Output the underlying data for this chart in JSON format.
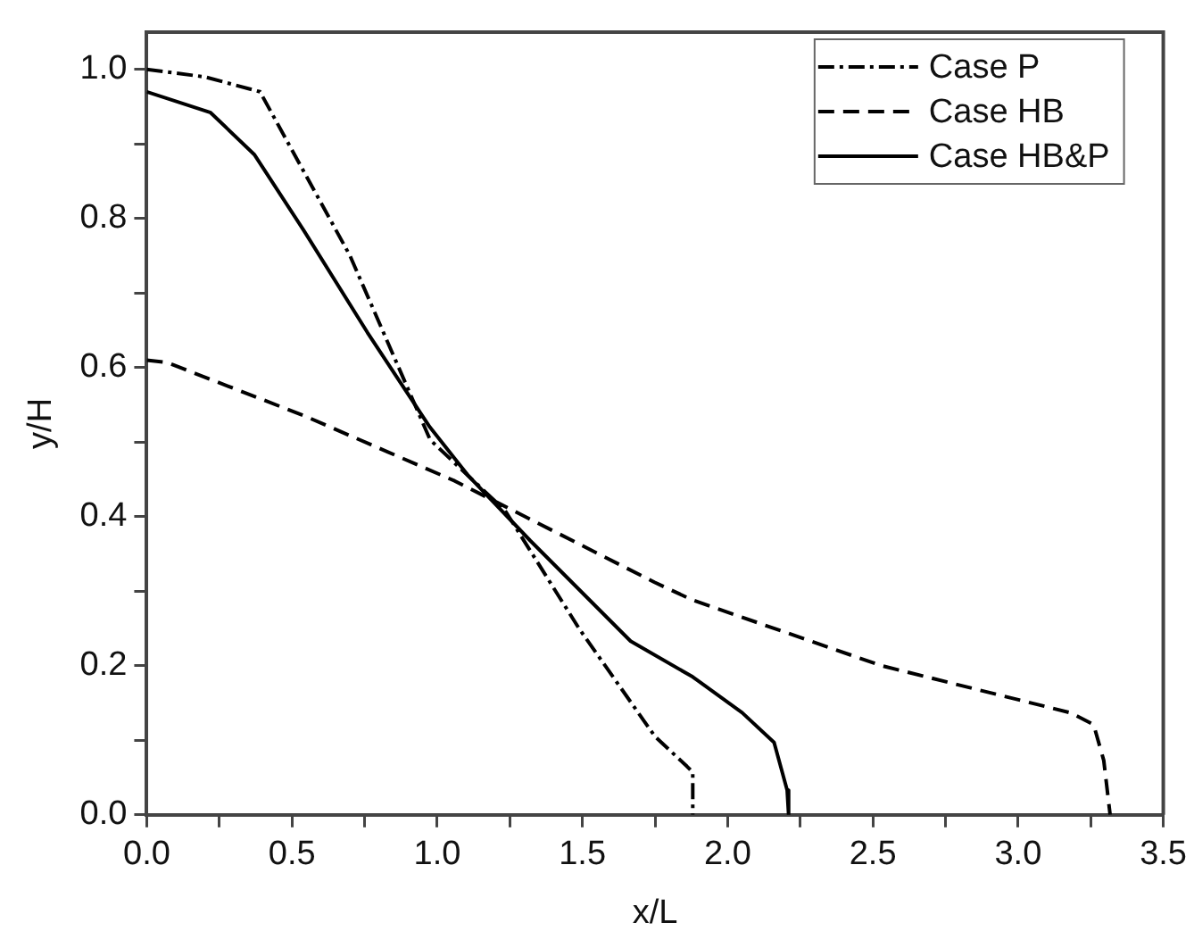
{
  "chart_data": {
    "type": "line",
    "xlabel": "x/L",
    "ylabel": "y/H",
    "xlim": [
      0,
      3.5
    ],
    "ylim": [
      0,
      1.05
    ],
    "xticks": [
      {
        "value": 0,
        "label": "0.0"
      },
      {
        "value": 0.25,
        "label": null
      },
      0.5,
      {
        "value": 0.75,
        "label": null
      },
      {
        "value": 1,
        "label": "1.0"
      },
      {
        "value": 1.25,
        "label": null
      },
      1.5,
      {
        "value": 1.75,
        "label": null
      },
      {
        "value": 2,
        "label": "2.0"
      },
      {
        "value": 2.25,
        "label": null
      },
      2.5,
      {
        "value": 2.75,
        "label": null
      },
      {
        "value": 3,
        "label": "3.0"
      },
      {
        "value": 3.25,
        "label": null
      },
      3.5
    ],
    "yticks": [
      {
        "value": 0,
        "label": "0.0"
      },
      {
        "value": 0.1,
        "label": null
      },
      0.2,
      {
        "value": 0.3,
        "label": null
      },
      0.4,
      {
        "value": 0.5,
        "label": null
      },
      0.6,
      {
        "value": 0.7,
        "label": null
      },
      0.8,
      {
        "value": 0.9,
        "label": null
      },
      {
        "value": 1,
        "label": "1.0"
      }
    ],
    "grid": false,
    "legend": "top right",
    "marker": "none",
    "series": [
      {
        "name": "Case P",
        "color": "#000000",
        "line_style": "dashdot",
        "x": [
          0,
          0.2,
          0.39,
          0.7,
          0.976,
          1.234,
          1.49,
          1.75,
          1.86,
          1.88,
          1.88
        ],
        "values": [
          1.0,
          0.99,
          0.97,
          0.75,
          0.503,
          0.408,
          0.249,
          0.105,
          0.065,
          0.057,
          0
        ]
      },
      {
        "name": "Case HB",
        "color": "#000000",
        "line_style": "dashed",
        "x": [
          0,
          0.069,
          0.544,
          1.06,
          1.748,
          1.88,
          2.53,
          3.18,
          3.26,
          3.295,
          3.317
        ],
        "values": [
          0.61,
          0.607,
          0.535,
          0.448,
          0.312,
          0.288,
          0.2,
          0.137,
          0.121,
          0.073,
          0
        ]
      },
      {
        "name": "Case HB&P",
        "color": "#000000",
        "line_style": "solid",
        "x": [
          0,
          0.22,
          0.37,
          0.544,
          0.76,
          0.975,
          1.105,
          1.32,
          1.666,
          1.88,
          2.05,
          2.16,
          2.205,
          2.21
        ],
        "values": [
          0.97,
          0.942,
          0.886,
          0.782,
          0.647,
          0.52,
          0.456,
          0.368,
          0.233,
          0.185,
          0.137,
          0.097,
          0.033,
          0
        ]
      }
    ]
  }
}
